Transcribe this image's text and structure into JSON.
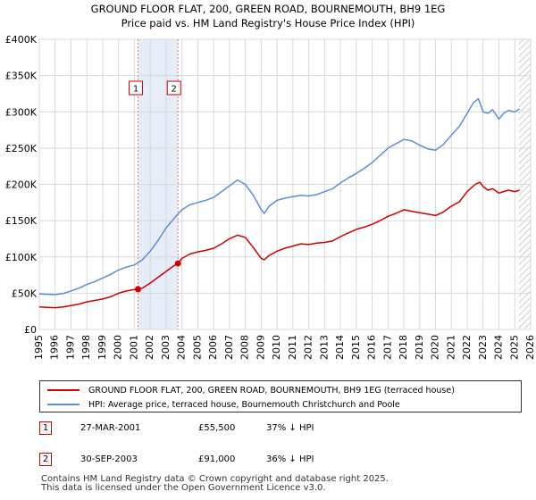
{
  "chart_data": {
    "type": "line",
    "title": "GROUND FLOOR FLAT, 200, GREEN ROAD, BOURNEMOUTH, BH9 1EG",
    "subtitle": "Price paid vs. HM Land Registry's House Price Index (HPI)",
    "xlim": [
      1995,
      2026
    ],
    "ylim": [
      0,
      400000
    ],
    "y_ticks": [
      0,
      50000,
      100000,
      150000,
      200000,
      250000,
      300000,
      350000,
      400000
    ],
    "y_tick_labels": [
      "£0",
      "£50K",
      "£100K",
      "£150K",
      "£200K",
      "£250K",
      "£300K",
      "£350K",
      "£400K"
    ],
    "x_ticks": [
      1995,
      1996,
      1997,
      1998,
      1999,
      2000,
      2001,
      2002,
      2003,
      2004,
      2005,
      2006,
      2007,
      2008,
      2009,
      2010,
      2011,
      2012,
      2013,
      2014,
      2015,
      2016,
      2017,
      2018,
      2019,
      2020,
      2021,
      2022,
      2023,
      2024,
      2025,
      2026
    ],
    "grid": true,
    "shaded_period": [
      2001.23,
      2003.75
    ],
    "hatched_from": 2025.25,
    "series": [
      {
        "name": "GROUND FLOOR FLAT, 200, GREEN ROAD, BOURNEMOUTH, BH9 1EG (terraced house)",
        "color": "#cc0000",
        "x": [
          1995,
          1995.5,
          1996,
          1996.5,
          1997,
          1997.5,
          1998,
          1998.5,
          1999,
          1999.5,
          2000,
          2000.5,
          2001,
          2001.23,
          2001.5,
          2002,
          2002.5,
          2003,
          2003.5,
          2003.75,
          2004,
          2004.5,
          2005,
          2005.5,
          2006,
          2006.5,
          2007,
          2007.5,
          2008,
          2008.5,
          2009,
          2009.2,
          2009.5,
          2010,
          2010.5,
          2011,
          2011.5,
          2012,
          2012.5,
          2013,
          2013.5,
          2014,
          2014.5,
          2015,
          2015.5,
          2016,
          2016.5,
          2017,
          2017.5,
          2018,
          2018.5,
          2019,
          2019.5,
          2020,
          2020.5,
          2021,
          2021.5,
          2022,
          2022.5,
          2022.8,
          2023,
          2023.3,
          2023.6,
          2024,
          2024.3,
          2024.6,
          2025,
          2025.3
        ],
        "values": [
          31000,
          30500,
          30000,
          31000,
          33000,
          35000,
          38000,
          40000,
          42000,
          45000,
          50000,
          53000,
          55000,
          55500,
          57000,
          64000,
          72000,
          80000,
          88000,
          91000,
          98000,
          104000,
          107000,
          109000,
          112000,
          118000,
          125000,
          130000,
          127000,
          113000,
          98000,
          96000,
          102000,
          108000,
          112000,
          115000,
          118000,
          117000,
          119000,
          120000,
          122000,
          128000,
          133000,
          138000,
          141000,
          145000,
          150000,
          156000,
          160000,
          165000,
          163000,
          161000,
          159000,
          157000,
          162000,
          170000,
          176000,
          190000,
          200000,
          203000,
          197000,
          192000,
          194000,
          188000,
          190000,
          192000,
          190000,
          192000
        ]
      },
      {
        "name": "HPI: Average price, terraced house, Bournemouth Christchurch and Poole",
        "color": "#5b8fd0",
        "x": [
          1995,
          1995.5,
          1996,
          1996.5,
          1997,
          1997.5,
          1998,
          1998.5,
          1999,
          1999.5,
          2000,
          2000.5,
          2001,
          2001.5,
          2002,
          2002.5,
          2003,
          2003.5,
          2004,
          2004.5,
          2005,
          2005.5,
          2006,
          2006.5,
          2007,
          2007.5,
          2008,
          2008.5,
          2009,
          2009.2,
          2009.5,
          2010,
          2010.5,
          2011,
          2011.5,
          2012,
          2012.5,
          2013,
          2013.5,
          2014,
          2014.5,
          2015,
          2015.5,
          2016,
          2016.5,
          2017,
          2017.5,
          2018,
          2018.5,
          2019,
          2019.5,
          2020,
          2020.5,
          2021,
          2021.5,
          2022,
          2022.4,
          2022.7,
          2023,
          2023.3,
          2023.6,
          2024,
          2024.3,
          2024.6,
          2025,
          2025.3
        ],
        "values": [
          49000,
          48500,
          48000,
          49500,
          53000,
          57000,
          62000,
          66000,
          71000,
          76000,
          82000,
          86000,
          89000,
          96000,
          108000,
          123000,
          140000,
          153000,
          165000,
          172000,
          175000,
          178000,
          182000,
          190000,
          198000,
          206000,
          200000,
          185000,
          165000,
          160000,
          170000,
          178000,
          181000,
          183000,
          185000,
          184000,
          186000,
          190000,
          194000,
          202000,
          209000,
          215000,
          222000,
          230000,
          240000,
          250000,
          256000,
          262000,
          260000,
          254000,
          249000,
          247000,
          255000,
          268000,
          280000,
          298000,
          313000,
          318000,
          300000,
          298000,
          303000,
          290000,
          298000,
          302000,
          300000,
          304000
        ]
      }
    ],
    "markers": [
      {
        "id": "1",
        "x": 2001.23,
        "value": 55500
      },
      {
        "id": "2",
        "x": 2003.75,
        "value": 91000
      }
    ]
  },
  "legend": {
    "items": [
      {
        "label": "GROUND FLOOR FLAT, 200, GREEN ROAD, BOURNEMOUTH, BH9 1EG (terraced house)",
        "color": "#cc0000"
      },
      {
        "label": "HPI: Average price, terraced house, Bournemouth Christchurch and Poole",
        "color": "#5b8fd0"
      }
    ]
  },
  "transactions": [
    {
      "id": "1",
      "date": "27-MAR-2001",
      "price": "£55,500",
      "hpi": "37% ↓ HPI"
    },
    {
      "id": "2",
      "date": "30-SEP-2003",
      "price": "£91,000",
      "hpi": "36% ↓ HPI"
    }
  ],
  "footer": {
    "line1": "Contains HM Land Registry data © Crown copyright and database right 2025.",
    "line2": "This data is licensed under the Open Government Licence v3.0."
  }
}
